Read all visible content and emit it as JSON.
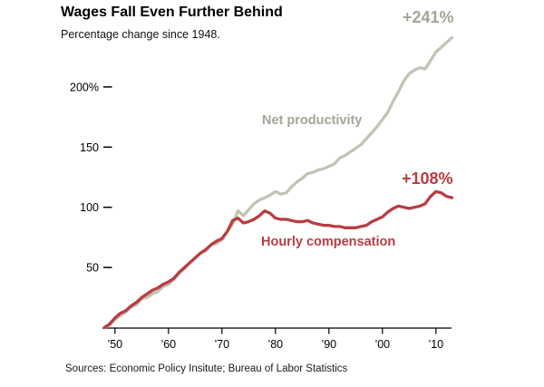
{
  "header": {
    "title": "Wages Fall Even Further Behind",
    "subtitle": "Percentage change since 1948."
  },
  "annotations": {
    "productivity_end": "+241%",
    "compensation_end": "+108%"
  },
  "series_labels": {
    "productivity": "Net productivity",
    "compensation": "Hourly compensation"
  },
  "footer": {
    "source": "Sources: Economic Policy Insitute; Bureau of Labor Statistics"
  },
  "colors": {
    "productivity_line": "#c3c2b4",
    "productivity_label": "#a5a498",
    "compensation_line": "#b83d42",
    "compensation_label": "#b83d42",
    "axis": "#000000",
    "tick_text": "#000000",
    "background": "#ffffff"
  },
  "chart_data": {
    "type": "line",
    "title": "Wages Fall Even Further Behind",
    "subtitle": "Percentage change since 1948.",
    "xlabel": "",
    "ylabel": "Percentage change since 1948",
    "xlim": [
      1948,
      2013
    ],
    "ylim": [
      0,
      250
    ],
    "grid": false,
    "legend": "inline-labels",
    "x": [
      1948,
      1949,
      1950,
      1951,
      1952,
      1953,
      1954,
      1955,
      1956,
      1957,
      1958,
      1959,
      1960,
      1961,
      1962,
      1963,
      1964,
      1965,
      1966,
      1967,
      1968,
      1969,
      1970,
      1971,
      1972,
      1973,
      1974,
      1975,
      1976,
      1977,
      1978,
      1979,
      1980,
      1981,
      1982,
      1983,
      1984,
      1985,
      1986,
      1987,
      1988,
      1989,
      1990,
      1991,
      1992,
      1993,
      1994,
      1995,
      1996,
      1997,
      1998,
      1999,
      2000,
      2001,
      2002,
      2003,
      2004,
      2005,
      2006,
      2007,
      2008,
      2009,
      2010,
      2011,
      2012,
      2013
    ],
    "series": [
      {
        "key": "productivity",
        "name": "Net productivity",
        "end_label": "+241%",
        "values": [
          0,
          2,
          7,
          10,
          13,
          17,
          19,
          24,
          25,
          28,
          30,
          34,
          36,
          40,
          45,
          49,
          54,
          58,
          62,
          64,
          69,
          70,
          73,
          80,
          86,
          97,
          93,
          98,
          103,
          106,
          108,
          110,
          113,
          111,
          112,
          117,
          121,
          124,
          128,
          129,
          131,
          132,
          134,
          136,
          141,
          143,
          146,
          149,
          152,
          157,
          162,
          167,
          173,
          179,
          188,
          196,
          205,
          211,
          214,
          216,
          215,
          222,
          229,
          233,
          237,
          241
        ]
      },
      {
        "key": "compensation",
        "name": "Hourly compensation",
        "end_label": "+108%",
        "values": [
          0,
          3,
          8,
          12,
          14,
          18,
          21,
          25,
          28,
          31,
          33,
          36,
          38,
          41,
          46,
          50,
          54,
          58,
          62,
          65,
          69,
          72,
          74,
          80,
          89,
          91,
          87,
          88,
          90,
          93,
          97,
          95,
          91,
          90,
          90,
          89,
          88,
          88,
          89,
          87,
          86,
          85,
          85,
          84,
          84,
          83,
          83,
          83,
          84,
          85,
          88,
          90,
          92,
          96,
          99,
          101,
          100,
          99,
          100,
          101,
          103,
          109,
          113,
          112,
          109,
          108
        ]
      }
    ],
    "y_ticks": [
      {
        "value": 50,
        "label": "50"
      },
      {
        "value": 100,
        "label": "100"
      },
      {
        "value": 150,
        "label": "150"
      },
      {
        "value": 200,
        "label": "200%"
      }
    ],
    "x_ticks": [
      {
        "year": 1950,
        "label": "’50"
      },
      {
        "year": 1960,
        "label": "’60"
      },
      {
        "year": 1970,
        "label": "’70"
      },
      {
        "year": 1980,
        "label": "’80"
      },
      {
        "year": 1990,
        "label": "’90"
      },
      {
        "year": 2000,
        "label": "’00"
      },
      {
        "year": 2010,
        "label": "’10"
      }
    ]
  }
}
